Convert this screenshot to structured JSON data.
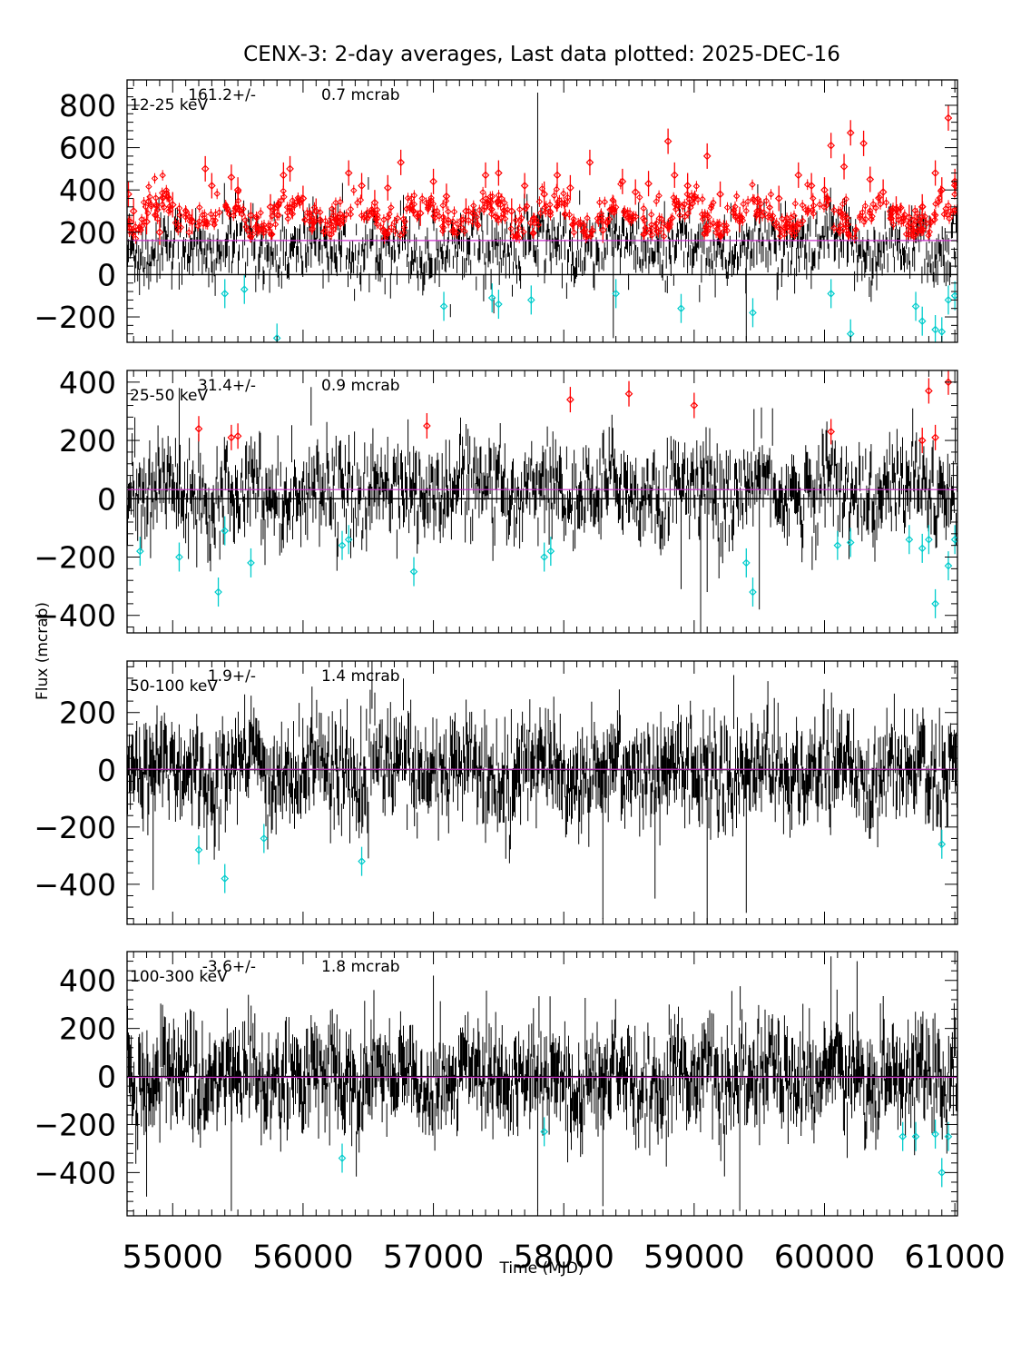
{
  "title": "CENX-3:  2-day averages,  Last data plotted: 2025-DEC-16",
  "xlabel": "Time (MJD)",
  "ylabel": "Flux (mcrab)",
  "colors": {
    "data": "#000000",
    "high": "#ff0000",
    "low": "#00cccc",
    "mean_line": "#cc33cc",
    "zero_line": "#000000"
  },
  "chart_data": [
    {
      "type": "scatter",
      "band": "12-25 keV",
      "mean_text": "161.2+/-",
      "err_text": "0.7 mcrab",
      "mean": 161.2,
      "xlim": [
        54650,
        61020
      ],
      "ylim": [
        -320,
        920
      ],
      "yticks": [
        -200,
        0,
        200,
        400,
        600,
        800
      ],
      "ytick_labels": [
        "−200",
        "0",
        "200",
        "400",
        "600",
        "800"
      ],
      "noise": {
        "center": 130,
        "spread": 110,
        "err": 45
      },
      "red_points": [
        [
          54660,
          380
        ],
        [
          54700,
          300
        ],
        [
          54800,
          250
        ],
        [
          54900,
          200
        ],
        [
          55000,
          330
        ],
        [
          55150,
          250
        ],
        [
          55250,
          500
        ],
        [
          55300,
          420
        ],
        [
          55450,
          460
        ],
        [
          55500,
          400
        ],
        [
          55600,
          280
        ],
        [
          55750,
          320
        ],
        [
          55850,
          470
        ],
        [
          55900,
          500
        ],
        [
          56000,
          360
        ],
        [
          56100,
          300
        ],
        [
          56250,
          260
        ],
        [
          56350,
          480
        ],
        [
          56450,
          420
        ],
        [
          56550,
          340
        ],
        [
          56650,
          410
        ],
        [
          56750,
          530
        ],
        [
          56900,
          290
        ],
        [
          57000,
          440
        ],
        [
          57100,
          370
        ],
        [
          57250,
          300
        ],
        [
          57400,
          470
        ],
        [
          57500,
          480
        ],
        [
          57600,
          300
        ],
        [
          57700,
          420
        ],
        [
          57850,
          380
        ],
        [
          57950,
          470
        ],
        [
          58050,
          410
        ],
        [
          58200,
          530
        ],
        [
          58300,
          210
        ],
        [
          58450,
          440
        ],
        [
          58550,
          390
        ],
        [
          58650,
          430
        ],
        [
          58800,
          630
        ],
        [
          58850,
          470
        ],
        [
          58950,
          420
        ],
        [
          59100,
          560
        ],
        [
          59200,
          380
        ],
        [
          59350,
          260
        ],
        [
          59500,
          300
        ],
        [
          59650,
          360
        ],
        [
          59800,
          470
        ],
        [
          59900,
          420
        ],
        [
          60000,
          400
        ],
        [
          60050,
          610
        ],
        [
          60150,
          510
        ],
        [
          60200,
          670
        ],
        [
          60300,
          620
        ],
        [
          60350,
          450
        ],
        [
          60450,
          390
        ],
        [
          60550,
          310
        ],
        [
          60650,
          270
        ],
        [
          60750,
          320
        ],
        [
          60850,
          480
        ],
        [
          60900,
          400
        ],
        [
          60950,
          740
        ],
        [
          61000,
          440
        ]
      ],
      "cyan_points": [
        [
          55400,
          -90
        ],
        [
          55550,
          -70
        ],
        [
          55800,
          -300
        ],
        [
          57080,
          -150
        ],
        [
          57450,
          -110
        ],
        [
          57500,
          -140
        ],
        [
          57750,
          -120
        ],
        [
          58400,
          -90
        ],
        [
          58900,
          -160
        ],
        [
          59450,
          -180
        ],
        [
          60050,
          -90
        ],
        [
          60200,
          -280
        ],
        [
          60700,
          -150
        ],
        [
          60750,
          -220
        ],
        [
          60850,
          -260
        ],
        [
          60900,
          -270
        ],
        [
          60950,
          -120
        ],
        [
          61000,
          -100
        ]
      ],
      "spikes": [
        [
          57800,
          860
        ],
        [
          58380,
          -300
        ],
        [
          59400,
          -310
        ]
      ]
    },
    {
      "type": "scatter",
      "band": "25-50 keV",
      "mean_text": "31.4+/-",
      "err_text": "0.9 mcrab",
      "mean": 31.4,
      "xlim": [
        54650,
        61020
      ],
      "ylim": [
        -460,
        440
      ],
      "yticks": [
        -400,
        -200,
        0,
        200,
        400
      ],
      "ytick_labels": [
        "−400",
        "−200",
        "0",
        "200",
        "400"
      ],
      "noise": {
        "center": 30,
        "spread": 95,
        "err": 55
      },
      "red_points": [
        [
          55200,
          240
        ],
        [
          55450,
          210
        ],
        [
          55500,
          215
        ],
        [
          56950,
          250
        ],
        [
          58050,
          340
        ],
        [
          58500,
          360
        ],
        [
          59000,
          320
        ],
        [
          60050,
          230
        ],
        [
          60750,
          200
        ],
        [
          60800,
          370
        ],
        [
          60850,
          210
        ],
        [
          60950,
          400
        ]
      ],
      "cyan_points": [
        [
          54750,
          -180
        ],
        [
          55050,
          -200
        ],
        [
          55350,
          -320
        ],
        [
          55400,
          -110
        ],
        [
          55600,
          -220
        ],
        [
          56300,
          -160
        ],
        [
          56350,
          -140
        ],
        [
          56850,
          -250
        ],
        [
          57850,
          -200
        ],
        [
          57900,
          -180
        ],
        [
          59400,
          -220
        ],
        [
          59450,
          -320
        ],
        [
          60100,
          -160
        ],
        [
          60200,
          -150
        ],
        [
          60650,
          -140
        ],
        [
          60750,
          -170
        ],
        [
          60800,
          -140
        ],
        [
          60850,
          -360
        ],
        [
          60950,
          -230
        ],
        [
          61000,
          -140
        ]
      ],
      "spikes": [
        [
          55050,
          380
        ],
        [
          58900,
          -310
        ],
        [
          59100,
          -320
        ],
        [
          59500,
          -380
        ],
        [
          59050,
          -460
        ]
      ]
    },
    {
      "type": "scatter",
      "band": "50-100 keV",
      "mean_text": "1.9+/-",
      "err_text": "1.4 mcrab",
      "mean": 1.9,
      "xlim": [
        54650,
        61020
      ],
      "ylim": [
        -540,
        380
      ],
      "yticks": [
        -400,
        -200,
        0,
        200
      ],
      "ytick_labels": [
        "−400",
        "−200",
        "0",
        "200"
      ],
      "noise": {
        "center": 0,
        "spread": 100,
        "err": 70
      },
      "red_points": [],
      "cyan_points": [
        [
          55200,
          -280
        ],
        [
          55400,
          -380
        ],
        [
          55700,
          -240
        ],
        [
          56450,
          -320
        ],
        [
          60900,
          -260
        ]
      ],
      "spikes": [
        [
          54850,
          -420
        ],
        [
          58300,
          -520
        ],
        [
          58700,
          -450
        ],
        [
          59100,
          -540
        ],
        [
          59400,
          -500
        ]
      ]
    },
    {
      "type": "scatter",
      "band": "100-300 keV",
      "mean_text": "-3.6+/-",
      "err_text": "1.8 mcrab",
      "mean": -3.6,
      "xlim": [
        54650,
        61020
      ],
      "ylim": [
        -580,
        520
      ],
      "yticks": [
        -400,
        -200,
        0,
        200,
        400
      ],
      "ytick_labels": [
        "−400",
        "−200",
        "0",
        "200",
        "400"
      ],
      "noise": {
        "center": 0,
        "spread": 120,
        "err": 90
      },
      "red_points": [],
      "cyan_points": [
        [
          56300,
          -340
        ],
        [
          57850,
          -230
        ],
        [
          60600,
          -250
        ],
        [
          60700,
          -250
        ],
        [
          60850,
          -240
        ],
        [
          60900,
          -400
        ],
        [
          60950,
          -250
        ]
      ],
      "spikes": [
        [
          54800,
          -500
        ],
        [
          55450,
          -560
        ],
        [
          57800,
          -560
        ],
        [
          58300,
          -540
        ],
        [
          59350,
          -560
        ],
        [
          60050,
          500
        ],
        [
          60250,
          480
        ],
        [
          57000,
          420
        ]
      ]
    }
  ],
  "xticks": [
    55000,
    56000,
    57000,
    58000,
    59000,
    60000,
    61000
  ],
  "xtick_labels": [
    "55000",
    "56000",
    "57000",
    "58000",
    "59000",
    "60000",
    "61000"
  ]
}
